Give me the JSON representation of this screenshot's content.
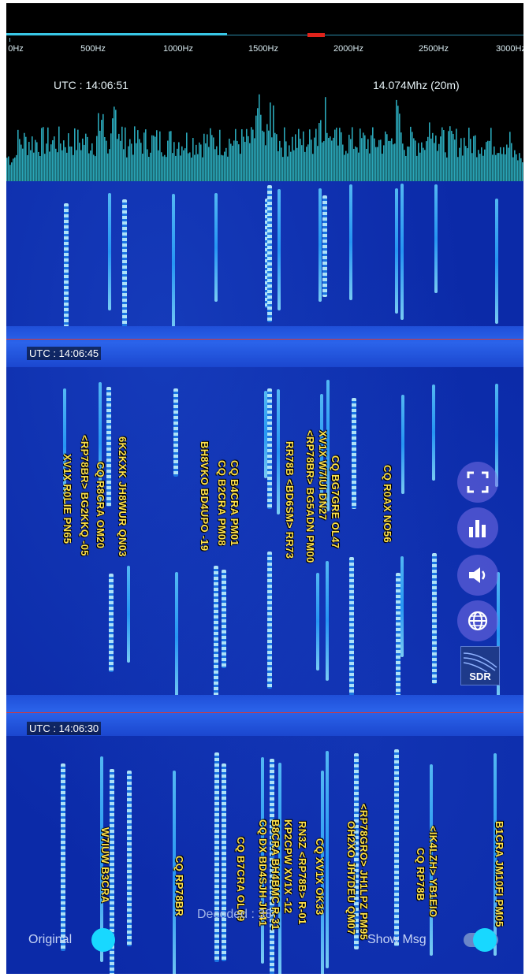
{
  "freq_axis": {
    "ticks": [
      "0Hz",
      "500Hz",
      "1000Hz",
      "1500Hz",
      "2000Hz",
      "2500Hz",
      "3000Hz"
    ]
  },
  "status": {
    "utc": "UTC : 14:06:51",
    "frequency": "14.074Mhz (20m)"
  },
  "waterfall": {
    "markers": [
      {
        "label": "UTC : 14:06:45"
      },
      {
        "label": "UTC : 14:06:30"
      }
    ],
    "decodes_1": [
      "XV1X R0LIE PN65",
      "<RP78BR> BG2KKQ -05",
      "CQ R8CRA OM20",
      "6K2KXK JH8WUR QN03",
      "BH8VKO BD4UPO -19",
      "CQ B2CRA PM08",
      "CQ B4CRA PM01",
      "RR78B <BD6SM> RR73",
      "<RP78BR> BG5ADN PM00",
      "XV1X W7IUI DN27",
      "CQ BG7GRE OL47",
      "CQ R0AX NO56"
    ],
    "decodes_2": [
      "W7IUW B3CRA",
      "CQ RP78BR",
      "CQ B7CRA OL69",
      "CQ DX BD4SJH JH41",
      "B8CRA BH4BMC R-31",
      "KP2CPW XV1X -12",
      "RN3Z <RP78B> R-01",
      "CQ XV1X OK33",
      "OH2XO JH7DEU QM07",
      "<RP78GRO> JH1LPZ PM95",
      "CQ RP78B",
      "<IK4LZH> YB1EIO",
      "B1CRA JM10FI PM05"
    ]
  },
  "tools": [
    "fullscreen-icon",
    "bar-chart-icon",
    "speaker-icon",
    "globe-icon"
  ],
  "sdr_label": "SDR",
  "controls": {
    "original_label": "Original",
    "decoded_label": "Decoded : 38",
    "show_msg_label": "Show Msg"
  },
  "colors": {
    "accent": "#18d8ff",
    "waterfall_bg": "#0b2aa8",
    "decode_text": "#ffe24a",
    "tx_marker": "#e0231b"
  }
}
